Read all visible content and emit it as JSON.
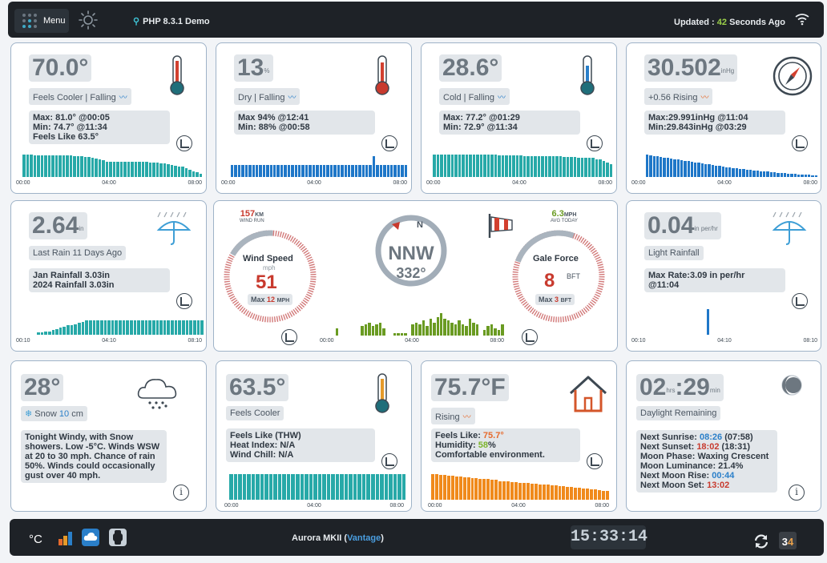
{
  "header": {
    "menu_label": "Menu",
    "demo_label": "PHP 8.3.1 Demo",
    "updated_prefix": "Updated :",
    "updated_value": "42",
    "updated_suffix": "Seconds Ago"
  },
  "outdoor_temp": {
    "value": "70.0°",
    "trend": "Feels Cooler | Falling",
    "lines": [
      "Max: 81.0° @00:05",
      "Min: 74.7° @11:34",
      "Feels Like 63.5°"
    ],
    "bar_color": "#27a9a8",
    "times": [
      "00:00",
      "04:00",
      "08:00"
    ]
  },
  "humidity": {
    "value": "13",
    "unit": "%",
    "trend": "Dry | Falling",
    "lines": [
      "Max 94% @12:41",
      "Min: 88% @00:58"
    ],
    "bar_color": "#1f77c8",
    "times": [
      "00:00",
      "04:00",
      "08:00"
    ]
  },
  "dewpoint": {
    "value": "28.6°",
    "trend": "Cold | Falling",
    "lines": [
      "Max: 77.2° @01:29",
      "Min: 72.9° @11:34"
    ],
    "bar_color": "#27a9a8",
    "times": [
      "00:00",
      "04:00",
      "08:00"
    ]
  },
  "barometer": {
    "value": "30.502",
    "unit": "inHg",
    "trend": "+0.56 Rising",
    "lines": [
      "Max:29.991inHg @11:04",
      "Min:29.843inHg @03:29"
    ],
    "bar_color": "#1f77c8",
    "times": [
      "00:00",
      "04:00",
      "08:00"
    ]
  },
  "rain": {
    "value": "2.64",
    "unit": "in",
    "pill": "Last Rain 11 Days Ago",
    "lines": [
      "Jan Rainfall 3.03in",
      "2024 Rainfall 3.03in"
    ],
    "bar_color": "#27a9a8",
    "times": [
      "00:10",
      "04:10",
      "08:10"
    ]
  },
  "wind": {
    "run_value": "157",
    "run_unit": "KM",
    "run_label": "WIND RUN",
    "speed_title": "Wind Speed",
    "speed_unit": "mph",
    "speed_value": "51",
    "speed_max_prefix": "Max",
    "speed_max_value": "12",
    "speed_max_unit": "MPH",
    "compass_n": "N",
    "direction": "NNW",
    "degrees": "332°",
    "avg_value": "6.3",
    "avg_unit": "MPH",
    "avg_label": "AVG TODAY",
    "gale_title": "Gale Force",
    "gale_value": "8",
    "gale_unit": "BFT",
    "gale_max_prefix": "Max",
    "gale_max_value": "3",
    "gale_max_unit": "BFT",
    "bar_color": "#6a9b22",
    "times": [
      "00:00",
      "04:00",
      "08:00"
    ]
  },
  "rain_rate": {
    "value": "0.04",
    "unit": "in per/hr",
    "pill": "Light Rainfall",
    "lines": [
      "Max Rate:3.09 in per/hr",
      "@11:04"
    ],
    "bar_color": "#1f77c8",
    "times": [
      "00:10",
      "04:10",
      "08:10"
    ]
  },
  "forecast": {
    "value": "28°",
    "snow_prefix": "Snow",
    "snow_value": "10",
    "snow_unit": "cm",
    "text": "Tonight Windy, with Snow showers. Low -5°C. Winds WSW at 20 to 30 mph. Chance of rain 50%. Winds could occasionally gust over 40 mph."
  },
  "indoor_feels": {
    "value": "63.5°",
    "pill": "Feels Cooler",
    "lines": [
      "Feels Like (THW)",
      "Heat Index: N/A",
      "Wind Chill: N/A"
    ],
    "bar_color": "#27a9a8",
    "times": [
      "00:00",
      "04:00",
      "08:00"
    ]
  },
  "indoor_temp": {
    "value": "75.7°F",
    "trend": "Rising",
    "feels_prefix": "Feels Like:",
    "feels_value": "75.7°",
    "humidity_prefix": "Humidity:",
    "humidity_value": "58",
    "humidity_suffix": "%",
    "comfort": "Comfortable environment.",
    "bar_color": "#f08a1c",
    "times": [
      "00:00",
      "04:00",
      "08:00"
    ]
  },
  "daylight": {
    "hours": "02",
    "hours_unit": "hrs",
    "minutes": "29",
    "minutes_unit": "min",
    "pill": "Daylight Remaining",
    "sunrise_label": "Next Sunrise:",
    "sunrise_time": "08:26",
    "sunrise_extra": "(07:58)",
    "sunset_label": "Next Sunset:",
    "sunset_time": "18:02",
    "sunset_extra": "(18:31)",
    "phase": "Moon Phase: Waxing Crescent",
    "luminance": "Moon Luminance: 21.4%",
    "moonrise_label": "Next Moon Rise:",
    "moonrise_time": "00:44",
    "moonset_label": "Next Moon Set:",
    "moonset_time": "13:02"
  },
  "footer": {
    "unit_label": "°C",
    "station_prefix": "Aurora MKII (",
    "station_link": "Vantage",
    "station_suffix": ")",
    "clock": "15:33:14",
    "cal_day_a": "3",
    "cal_day_b": "4"
  },
  "colors": {
    "accent_red": "#c83a2e",
    "accent_green": "#7bb32b",
    "accent_blue": "#2a7fc9"
  }
}
